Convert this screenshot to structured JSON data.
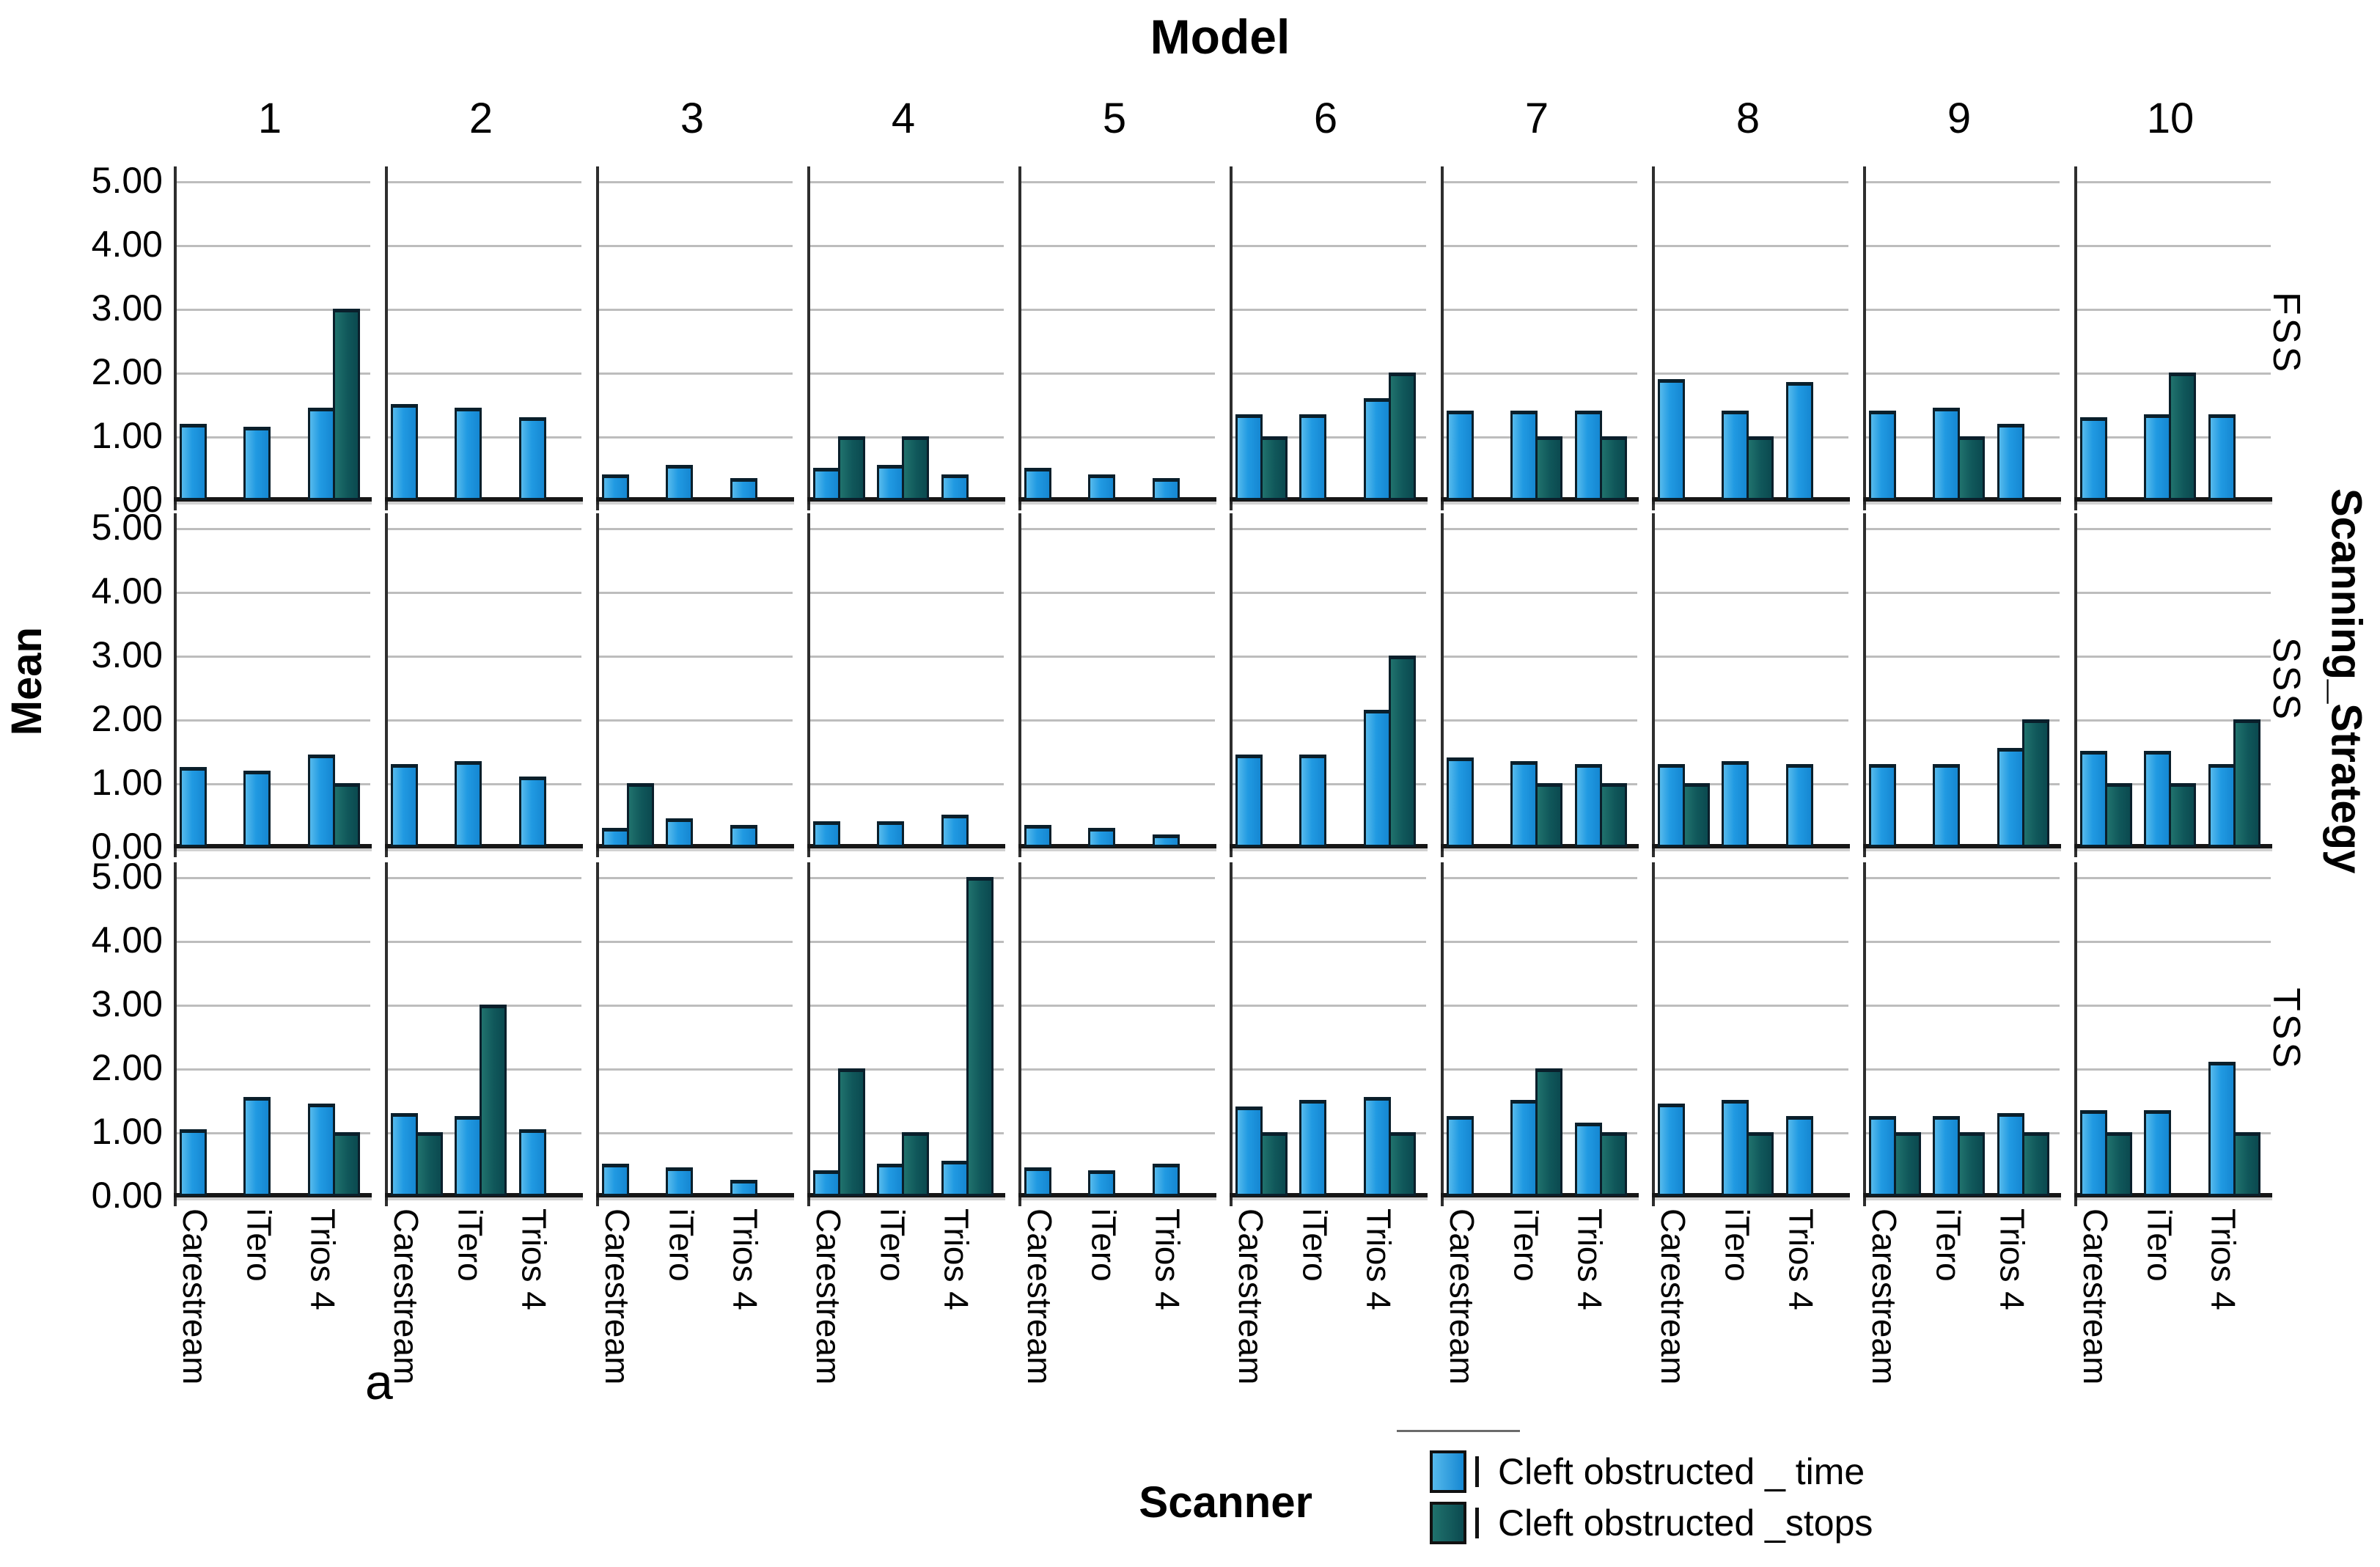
{
  "title": "Model",
  "left_axis_label": "Mean",
  "right_axis_label": "Scanning_Strategy",
  "bottom_axis_label": "Scanner",
  "annotation": "a",
  "colors": {
    "time_bar": "#219ae2",
    "stops_bar": "#10575a",
    "bar_border": "#0a1f2b",
    "gridline": "#bdbdbd",
    "axis": "#2e2e2e"
  },
  "legend": {
    "items": [
      {
        "label": "Cleft obstructed _ time",
        "series": "time",
        "color": "#219ae2"
      },
      {
        "label": "Cleft obstructed _stops",
        "series": "stops",
        "color": "#10575a"
      }
    ]
  },
  "chart_data": {
    "type": "bar",
    "title": "Model",
    "ylabel": "Mean",
    "xlabel": "Scanner",
    "ylim": [
      0,
      5
    ],
    "grid": true,
    "ytick_labels": [
      "5.00",
      "4.00",
      "3.00",
      "2.00",
      "1.00",
      "0.00"
    ],
    "ytick_labels_fss": [
      "5.00",
      "4.00",
      "3.00",
      "2.00",
      "1.00",
      ".00"
    ],
    "column_facets": [
      "1",
      "2",
      "3",
      "4",
      "5",
      "6",
      "7",
      "8",
      "9",
      "10"
    ],
    "categories": [
      "Carestream",
      "iTero",
      "Trios 4"
    ],
    "series_names": [
      "Cleft obstructed _ time",
      "Cleft obstructed _stops"
    ],
    "rows": [
      {
        "strategy": "FSS",
        "models": [
          {
            "model": "1",
            "time": [
              1.2,
              1.15,
              1.45
            ],
            "stops": [
              null,
              null,
              3.0
            ]
          },
          {
            "model": "2",
            "time": [
              1.5,
              1.45,
              1.3
            ],
            "stops": [
              null,
              null,
              null
            ]
          },
          {
            "model": "3",
            "time": [
              0.4,
              0.55,
              0.35
            ],
            "stops": [
              null,
              null,
              null
            ]
          },
          {
            "model": "4",
            "time": [
              0.5,
              0.55,
              0.4
            ],
            "stops": [
              1.0,
              1.0,
              null
            ]
          },
          {
            "model": "5",
            "time": [
              0.5,
              0.4,
              0.35
            ],
            "stops": [
              null,
              null,
              null
            ]
          },
          {
            "model": "6",
            "time": [
              1.35,
              1.35,
              1.6
            ],
            "stops": [
              1.0,
              null,
              2.0
            ]
          },
          {
            "model": "7",
            "time": [
              1.4,
              1.4,
              1.4
            ],
            "stops": [
              null,
              1.0,
              1.0
            ]
          },
          {
            "model": "8",
            "time": [
              1.9,
              1.4,
              1.85
            ],
            "stops": [
              null,
              1.0,
              null
            ]
          },
          {
            "model": "9",
            "time": [
              1.4,
              1.45,
              1.2
            ],
            "stops": [
              null,
              1.0,
              null
            ]
          },
          {
            "model": "10",
            "time": [
              1.3,
              1.35,
              1.35
            ],
            "stops": [
              null,
              2.0,
              null
            ]
          }
        ]
      },
      {
        "strategy": "SSS",
        "models": [
          {
            "model": "1",
            "time": [
              1.25,
              1.2,
              1.45
            ],
            "stops": [
              null,
              null,
              1.0
            ]
          },
          {
            "model": "2",
            "time": [
              1.3,
              1.35,
              1.1
            ],
            "stops": [
              null,
              null,
              null
            ]
          },
          {
            "model": "3",
            "time": [
              0.3,
              0.45,
              0.35
            ],
            "stops": [
              1.0,
              null,
              null
            ]
          },
          {
            "model": "4",
            "time": [
              0.4,
              0.4,
              0.5
            ],
            "stops": [
              null,
              null,
              null
            ]
          },
          {
            "model": "5",
            "time": [
              0.35,
              0.3,
              0.2
            ],
            "stops": [
              null,
              null,
              null
            ]
          },
          {
            "model": "6",
            "time": [
              1.45,
              1.45,
              2.15
            ],
            "stops": [
              null,
              null,
              3.0
            ]
          },
          {
            "model": "7",
            "time": [
              1.4,
              1.35,
              1.3
            ],
            "stops": [
              null,
              1.0,
              1.0
            ]
          },
          {
            "model": "8",
            "time": [
              1.3,
              1.35,
              1.3
            ],
            "stops": [
              1.0,
              null,
              null
            ]
          },
          {
            "model": "9",
            "time": [
              1.3,
              1.3,
              1.55
            ],
            "stops": [
              null,
              null,
              2.0
            ]
          },
          {
            "model": "10",
            "time": [
              1.5,
              1.5,
              1.3
            ],
            "stops": [
              1.0,
              1.0,
              2.0
            ]
          }
        ]
      },
      {
        "strategy": "TSS",
        "models": [
          {
            "model": "1",
            "time": [
              1.05,
              1.55,
              1.45
            ],
            "stops": [
              null,
              null,
              1.0
            ]
          },
          {
            "model": "2",
            "time": [
              1.3,
              1.25,
              1.05
            ],
            "stops": [
              1.0,
              3.0,
              null
            ]
          },
          {
            "model": "3",
            "time": [
              0.5,
              0.45,
              0.25
            ],
            "stops": [
              null,
              null,
              null
            ]
          },
          {
            "model": "4",
            "time": [
              0.4,
              0.5,
              0.55
            ],
            "stops": [
              2.0,
              1.0,
              5.0
            ]
          },
          {
            "model": "5",
            "time": [
              0.45,
              0.4,
              0.5
            ],
            "stops": [
              null,
              null,
              null
            ]
          },
          {
            "model": "6",
            "time": [
              1.4,
              1.5,
              1.55
            ],
            "stops": [
              1.0,
              null,
              1.0
            ]
          },
          {
            "model": "7",
            "time": [
              1.25,
              1.5,
              1.15
            ],
            "stops": [
              null,
              2.0,
              1.0
            ]
          },
          {
            "model": "8",
            "time": [
              1.45,
              1.5,
              1.25
            ],
            "stops": [
              null,
              1.0,
              null
            ]
          },
          {
            "model": "9",
            "time": [
              1.25,
              1.25,
              1.3
            ],
            "stops": [
              1.0,
              1.0,
              1.0
            ]
          },
          {
            "model": "10",
            "time": [
              1.35,
              1.35,
              2.1
            ],
            "stops": [
              1.0,
              null,
              1.0
            ]
          }
        ]
      }
    ]
  }
}
